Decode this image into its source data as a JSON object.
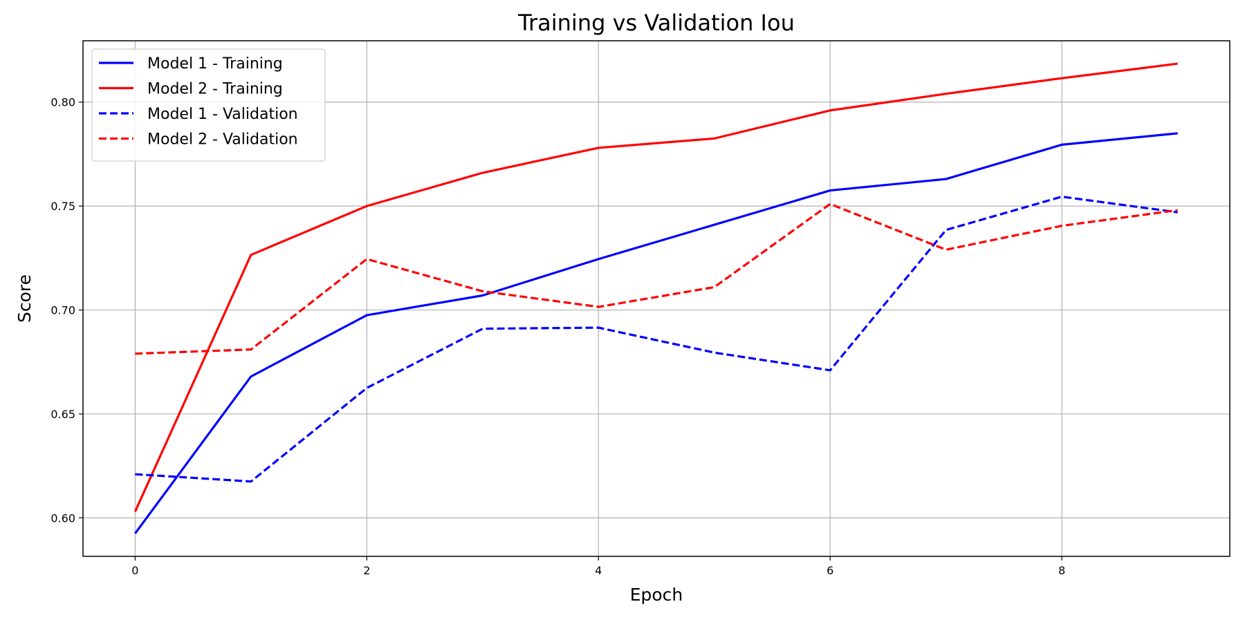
{
  "chart_data": {
    "type": "line",
    "title": "Training vs Validation Iou",
    "xlabel": "Epoch",
    "ylabel": "Score",
    "x": [
      0,
      1,
      2,
      3,
      4,
      5,
      6,
      7,
      8,
      9
    ],
    "xlim": [
      -0.45,
      9.45
    ],
    "ylim": [
      0.5815,
      0.8295
    ],
    "xticks": [
      0,
      2,
      4,
      6,
      8
    ],
    "yticks": [
      0.6,
      0.65,
      0.7,
      0.75,
      0.8
    ],
    "ytick_labels": [
      "0.60",
      "0.65",
      "0.70",
      "0.75",
      "0.80"
    ],
    "grid": true,
    "legend_position": "top-left",
    "series": [
      {
        "name": "Model 1 - Training",
        "color": "#0000ff",
        "style": "solid",
        "values": [
          0.5925,
          0.668,
          0.6975,
          0.707,
          0.7245,
          0.741,
          0.7575,
          0.763,
          0.7795,
          0.785
        ]
      },
      {
        "name": "Model 2 - Training",
        "color": "#ff0000",
        "style": "solid",
        "values": [
          0.603,
          0.7265,
          0.75,
          0.766,
          0.778,
          0.7825,
          0.796,
          0.804,
          0.8115,
          0.8185
        ]
      },
      {
        "name": "Model 1 - Validation",
        "color": "#0000ff",
        "style": "dashed",
        "values": [
          0.621,
          0.6175,
          0.6625,
          0.691,
          0.6915,
          0.6795,
          0.671,
          0.7385,
          0.7545,
          0.747
        ]
      },
      {
        "name": "Model 2 - Validation",
        "color": "#ff0000",
        "style": "dashed",
        "values": [
          0.679,
          0.681,
          0.7245,
          0.709,
          0.7015,
          0.711,
          0.751,
          0.729,
          0.7405,
          0.748
        ]
      }
    ]
  }
}
